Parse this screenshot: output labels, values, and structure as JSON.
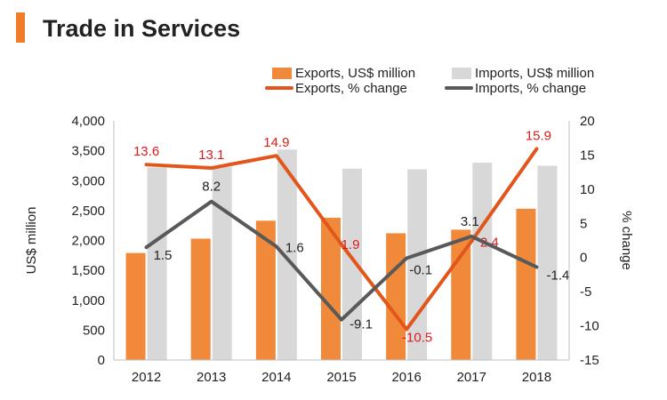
{
  "page": {
    "title": "Trade in Services",
    "accent_color": "#f07c29"
  },
  "chart_data": {
    "type": "bar",
    "title": "Trade in Services",
    "categories": [
      "2012",
      "2013",
      "2014",
      "2015",
      "2016",
      "2017",
      "2018"
    ],
    "series": [
      {
        "name": "Exports, US$ million",
        "kind": "bar",
        "axis": "left",
        "color": "#f08a3a",
        "values": [
          1790,
          2030,
          2330,
          2380,
          2120,
          2180,
          2530
        ]
      },
      {
        "name": "Imports, US$ million",
        "kind": "bar",
        "axis": "left",
        "color": "#d8d8d8",
        "values": [
          3220,
          3230,
          3520,
          3200,
          3190,
          3300,
          3250
        ]
      },
      {
        "name": "Exports, % change",
        "kind": "line",
        "axis": "right",
        "color": "#e2561c",
        "label_color": "#dd1b1b",
        "values": [
          13.6,
          13.1,
          14.9,
          1.9,
          -10.5,
          2.4,
          15.9
        ],
        "labels": [
          "13.6",
          "13.1",
          "14.9",
          "1.9",
          "-10.5",
          "2.4",
          "15.9"
        ]
      },
      {
        "name": "Imports, % change",
        "kind": "line",
        "axis": "right",
        "color": "#595959",
        "label_color": "#222222",
        "values": [
          1.5,
          8.2,
          1.6,
          -9.1,
          -0.1,
          3.1,
          -1.4
        ],
        "labels": [
          "1.5",
          "8.2",
          "1.6",
          "-9.1",
          "-0.1",
          "3.1",
          "-1.4"
        ]
      }
    ],
    "ylabel": "US$ million",
    "y2label": "% change",
    "ylim": [
      0,
      4000
    ],
    "y2lim": [
      -15,
      20
    ],
    "yticks": [
      "0",
      "500",
      "1,000",
      "1,500",
      "2,000",
      "2,500",
      "3,000",
      "3,500",
      "4,000"
    ],
    "y2ticks": [
      "-15",
      "-10",
      "-5",
      "0",
      "5",
      "10",
      "15",
      "20"
    ],
    "legend": "top-right",
    "grid": false
  }
}
